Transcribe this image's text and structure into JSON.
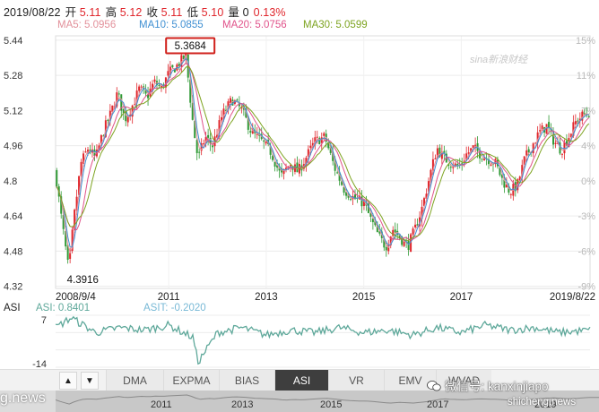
{
  "quote": {
    "date": "2019/08/22",
    "open_label": "开",
    "open": "5.11",
    "high_label": "高",
    "high": "5.12",
    "close_label": "收",
    "close": "5.11",
    "low_label": "低",
    "low": "5.10",
    "volume_label": "量",
    "volume": "0",
    "change": "0.13%"
  },
  "ma": {
    "ma5": "MA5: 5.0956",
    "ma10": "MA10: 5.0855",
    "ma20": "MA20: 5.0756",
    "ma30": "MA30: 5.0599"
  },
  "colors": {
    "ma5": "#e2909a",
    "ma10": "#3f8fd2",
    "ma20": "#e0528a",
    "ma30": "#7da320",
    "up": "#e0262c",
    "down": "#2f9a35",
    "asi": "#5ea89a",
    "highlight": "#d0201b"
  },
  "watermark": "sina新浪财经",
  "chart_data": [
    {
      "type": "line",
      "subtype": "candlestick-with-moving-averages",
      "title": "",
      "x_ticks": [
        "2008/9/4",
        "2011",
        "2013",
        "2015",
        "2017",
        "2019/8/22"
      ],
      "y_ticks": [
        "5.44",
        "5.28",
        "5.12",
        "4.96",
        "4.8",
        "4.64",
        "4.48",
        "4.32"
      ],
      "y_ticks_right": [
        "15%",
        "11%",
        "7%",
        "4%",
        "0%",
        "-3%",
        "-6%",
        "-9%"
      ],
      "ylim": [
        4.31,
        5.46
      ],
      "annotations": [
        {
          "label": "5.3684",
          "kind": "max",
          "x": 2011.35,
          "y": 5.3684
        },
        {
          "label": "4.3916",
          "kind": "min",
          "x": 2008.95,
          "y": 4.3916
        }
      ],
      "series": [
        {
          "x": [
            2008.68,
            2008.78,
            2008.88,
            2008.95,
            2009.05,
            2009.2,
            2009.35,
            2009.5,
            2009.65,
            2009.8,
            2009.95,
            2010.1,
            2010.25,
            2010.4,
            2010.55,
            2010.7,
            2010.85,
            2011.0,
            2011.15,
            2011.35,
            2011.5,
            2011.6,
            2011.75,
            2011.9,
            2012.1,
            2012.3,
            2012.5,
            2012.7,
            2012.9,
            2013.1,
            2013.3,
            2013.5,
            2013.65,
            2013.8,
            2014.0,
            2014.2,
            2014.4,
            2014.6,
            2014.8,
            2015.0,
            2015.15,
            2015.3,
            2015.45,
            2015.6,
            2015.75,
            2015.9,
            2016.05,
            2016.2,
            2016.35,
            2016.5,
            2016.65,
            2016.8,
            2016.95,
            2017.1,
            2017.25,
            2017.4,
            2017.55,
            2017.7,
            2017.85,
            2018.0,
            2018.15,
            2018.3,
            2018.45,
            2018.6,
            2018.75,
            2018.9,
            2019.05,
            2019.2,
            2019.35,
            2019.5,
            2019.64
          ],
          "values": [
            4.84,
            4.66,
            4.5,
            4.39,
            4.62,
            4.88,
            4.95,
            4.9,
            5.02,
            5.1,
            5.2,
            5.08,
            5.14,
            5.22,
            5.18,
            5.25,
            5.22,
            5.29,
            5.32,
            5.37,
            5.05,
            4.9,
            5.0,
            4.96,
            5.1,
            5.17,
            5.12,
            5.02,
            4.98,
            4.93,
            4.82,
            4.88,
            4.84,
            4.9,
            4.98,
            5.0,
            4.86,
            4.76,
            4.72,
            4.7,
            4.62,
            4.55,
            4.5,
            4.58,
            4.54,
            4.5,
            4.58,
            4.68,
            4.82,
            4.95,
            4.9,
            4.88,
            4.86,
            4.92,
            4.95,
            4.92,
            4.9,
            4.88,
            4.8,
            4.75,
            4.78,
            4.9,
            4.96,
            5.02,
            5.05,
            4.98,
            4.94,
            5.0,
            5.07,
            5.1,
            5.11
          ]
        }
      ]
    },
    {
      "type": "line",
      "title": "",
      "label": "ASI",
      "legend": [
        {
          "name": "ASI: 0.8401"
        },
        {
          "name": "ASIT: -0.2020"
        }
      ],
      "y_ticks": [
        "7",
        "-14"
      ],
      "ylim": [
        -14,
        7
      ],
      "series": [
        {
          "x": [
            2008.68,
            2009.0,
            2009.5,
            2010.0,
            2010.5,
            2011.0,
            2011.5,
            2011.6,
            2012.0,
            2012.5,
            2013.0,
            2013.5,
            2014.0,
            2014.5,
            2015.0,
            2015.5,
            2016.0,
            2016.5,
            2017.0,
            2017.5,
            2018.0,
            2018.5,
            2019.0,
            2019.64
          ],
          "values": [
            2,
            6,
            0,
            2,
            1,
            3,
            -2,
            -12,
            0,
            2,
            -1,
            1,
            0,
            2,
            0,
            1,
            -1,
            2,
            0,
            3,
            1,
            2,
            0,
            1
          ]
        }
      ]
    }
  ],
  "tabs": {
    "prev_icon": "▲",
    "next_icon": "▼",
    "items": [
      "DMA",
      "EXPMA",
      "BIAS",
      "ASI",
      "VR",
      "EMV",
      "WVAD"
    ],
    "active": "ASI"
  },
  "navigator": {
    "years": [
      "2011",
      "2013",
      "2015",
      "2017",
      "2019"
    ]
  },
  "overlays": {
    "left": "g.news",
    "wechat": "微信号: kanxinjiapo",
    "right": "shicheng.news"
  }
}
